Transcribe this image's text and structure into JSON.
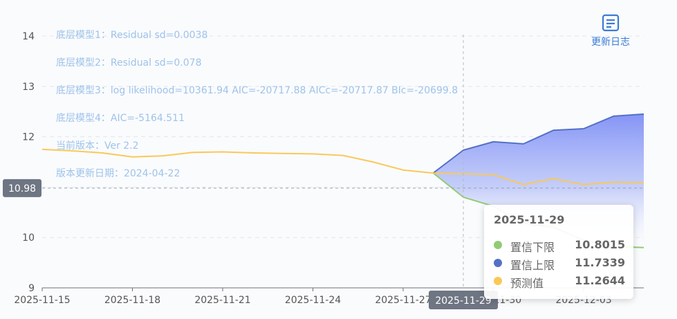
{
  "chart_data": {
    "type": "area",
    "x": [
      "2025-11-15",
      "2025-11-16",
      "2025-11-17",
      "2025-11-18",
      "2025-11-19",
      "2025-11-20",
      "2025-11-21",
      "2025-11-22",
      "2025-11-23",
      "2025-11-24",
      "2025-11-25",
      "2025-11-26",
      "2025-11-27",
      "2025-11-28",
      "2025-11-29",
      "2025-11-30",
      "2025-12-01",
      "2025-12-02",
      "2025-12-03",
      "2025-12-04",
      "2025-12-05"
    ],
    "x_tick_labels": [
      "2025-11-15",
      "2025-11-18",
      "2025-11-21",
      "2025-11-24",
      "2025-11-27",
      "2025-11-30",
      "2025-12-03"
    ],
    "y_ticks": [
      9,
      10,
      11,
      12,
      13,
      14
    ],
    "ylim": [
      9,
      14.4
    ],
    "grid": true,
    "series": [
      {
        "name": "置信下限",
        "color": "#91cc75",
        "values": [
          null,
          null,
          null,
          null,
          null,
          null,
          null,
          null,
          null,
          null,
          null,
          null,
          null,
          11.28,
          10.8015,
          10.62,
          10.28,
          10.2,
          9.95,
          9.82,
          9.8
        ]
      },
      {
        "name": "置信上限",
        "color": "#5470c6",
        "values": [
          null,
          null,
          null,
          null,
          null,
          null,
          null,
          null,
          null,
          null,
          null,
          null,
          null,
          11.28,
          11.7339,
          11.9,
          11.86,
          12.13,
          12.16,
          12.41,
          12.45
        ]
      },
      {
        "name": "预测值",
        "color": "#fac858",
        "values": [
          11.75,
          11.72,
          11.68,
          11.6,
          11.62,
          11.69,
          11.7,
          11.68,
          11.67,
          11.66,
          11.63,
          11.5,
          11.34,
          11.28,
          11.2644,
          11.25,
          11.05,
          11.17,
          11.05,
          11.1,
          11.09
        ]
      }
    ],
    "crosshair": {
      "x": "2025-11-29",
      "y": 10.98,
      "x_label": "2025-11-29",
      "y_label": "10.98"
    },
    "annotations": [
      "底层模型1：Residual sd=0.0038",
      "底层模型2：Residual sd=0.078",
      "底层模型3：log likelihood=10361.94 AIC=-20717.88 AICc=-20717.87 BIc=-20699.8",
      "底层模型4：AIC=-5164.511",
      "当前版本：Ver 2.2",
      "版本更新日期：2024-04-22"
    ]
  },
  "tooltip": {
    "title": "2025-11-29",
    "rows": [
      {
        "name": "置信下限",
        "value": "10.8015",
        "color": "#91cc75"
      },
      {
        "name": "置信上限",
        "value": "11.7339",
        "color": "#5470c6"
      },
      {
        "name": "预测值",
        "value": "11.2644",
        "color": "#fac858"
      }
    ]
  },
  "toolbar": {
    "changelog_label": "更新日志",
    "changelog_icon": "document-icon"
  }
}
